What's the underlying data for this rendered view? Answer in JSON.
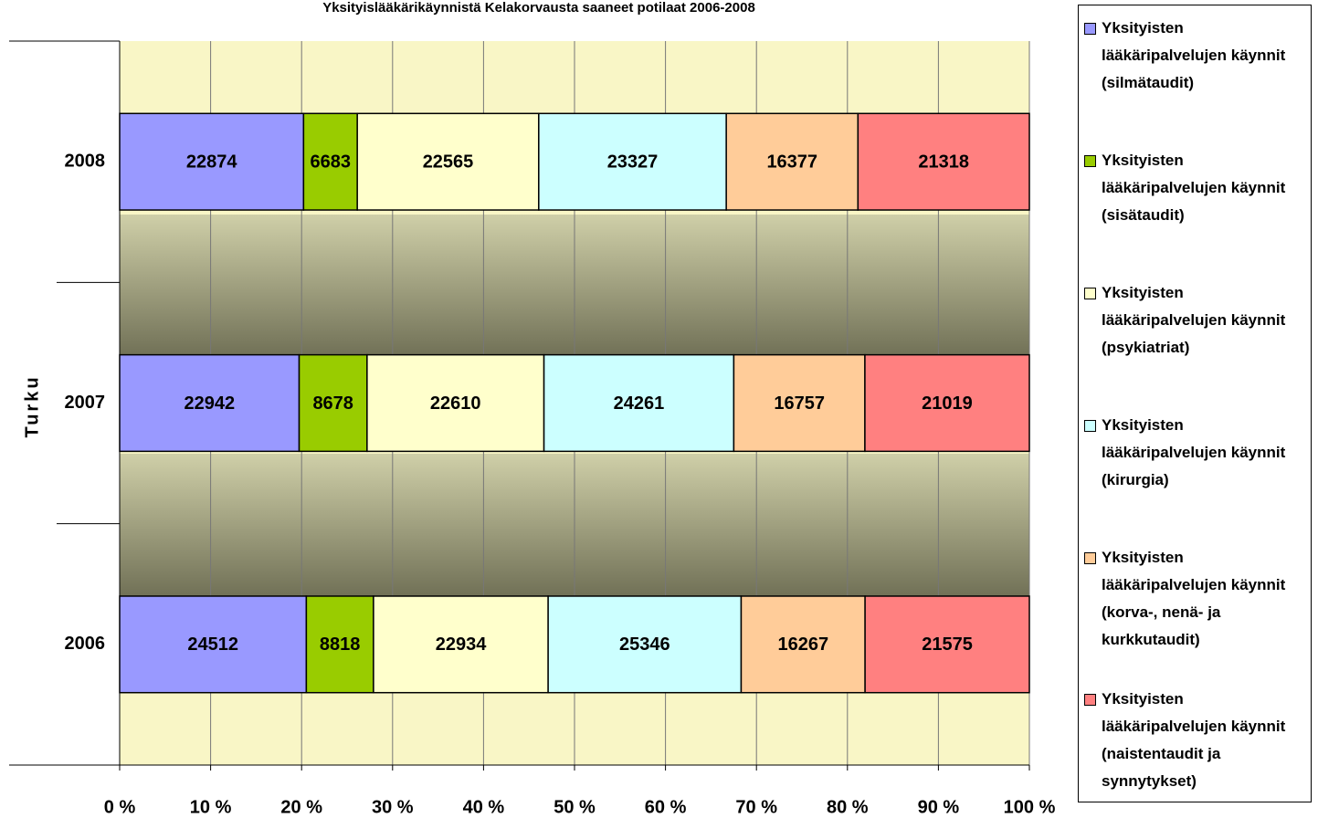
{
  "chart_data": {
    "type": "bar",
    "orientation": "horizontal",
    "stacked": "percent",
    "title": "Yksityislääkärikäynnistä Kelakorvausta saaneet potilaat 2006-2008",
    "y_label": "Turku",
    "categories": [
      "2006",
      "2007",
      "2008"
    ],
    "series": [
      {
        "name": "Yksityisten lääkäripalvelujen käynnit (silmätaudit)",
        "color": "#9999ff",
        "values": [
          24512,
          22942,
          22874
        ]
      },
      {
        "name": "Yksityisten lääkäripalvelujen käynnit (sisätaudit)",
        "color": "#99cc00",
        "values": [
          8818,
          8678,
          6683
        ]
      },
      {
        "name": "Yksityisten lääkäripalvelujen käynnit (psykiatriat)",
        "color": "#ffffcc",
        "values": [
          22934,
          22610,
          22565
        ]
      },
      {
        "name": "Yksityisten lääkäripalvelujen käynnit (kirurgia)",
        "color": "#ccffff",
        "values": [
          25346,
          24261,
          23327
        ]
      },
      {
        "name": "Yksityisten lääkäripalvelujen käynnit (korva-, nenä- ja kurkkutaudit)",
        "color": "#ffcc99",
        "values": [
          16267,
          16757,
          16377
        ]
      },
      {
        "name": "Yksityisten lääkäripalvelujen käynnit (naistentaudit ja synnytykset)",
        "color": "#ff8080",
        "values": [
          21575,
          21019,
          21318
        ]
      }
    ],
    "xlim": [
      0,
      100
    ],
    "xticks": [
      {
        "value": 0,
        "label": "0 %"
      },
      {
        "value": 10,
        "label": "10 %"
      },
      {
        "value": 20,
        "label": "20 %"
      },
      {
        "value": 30,
        "label": "30 %"
      },
      {
        "value": 40,
        "label": "40 %"
      },
      {
        "value": 50,
        "label": "50 %"
      },
      {
        "value": 60,
        "label": "60 %"
      },
      {
        "value": 70,
        "label": "70 %"
      },
      {
        "value": 80,
        "label": "80 %"
      },
      {
        "value": 90,
        "label": "90 %"
      },
      {
        "value": 100,
        "label": "100 %"
      }
    ],
    "grid": true,
    "legend": "right"
  }
}
